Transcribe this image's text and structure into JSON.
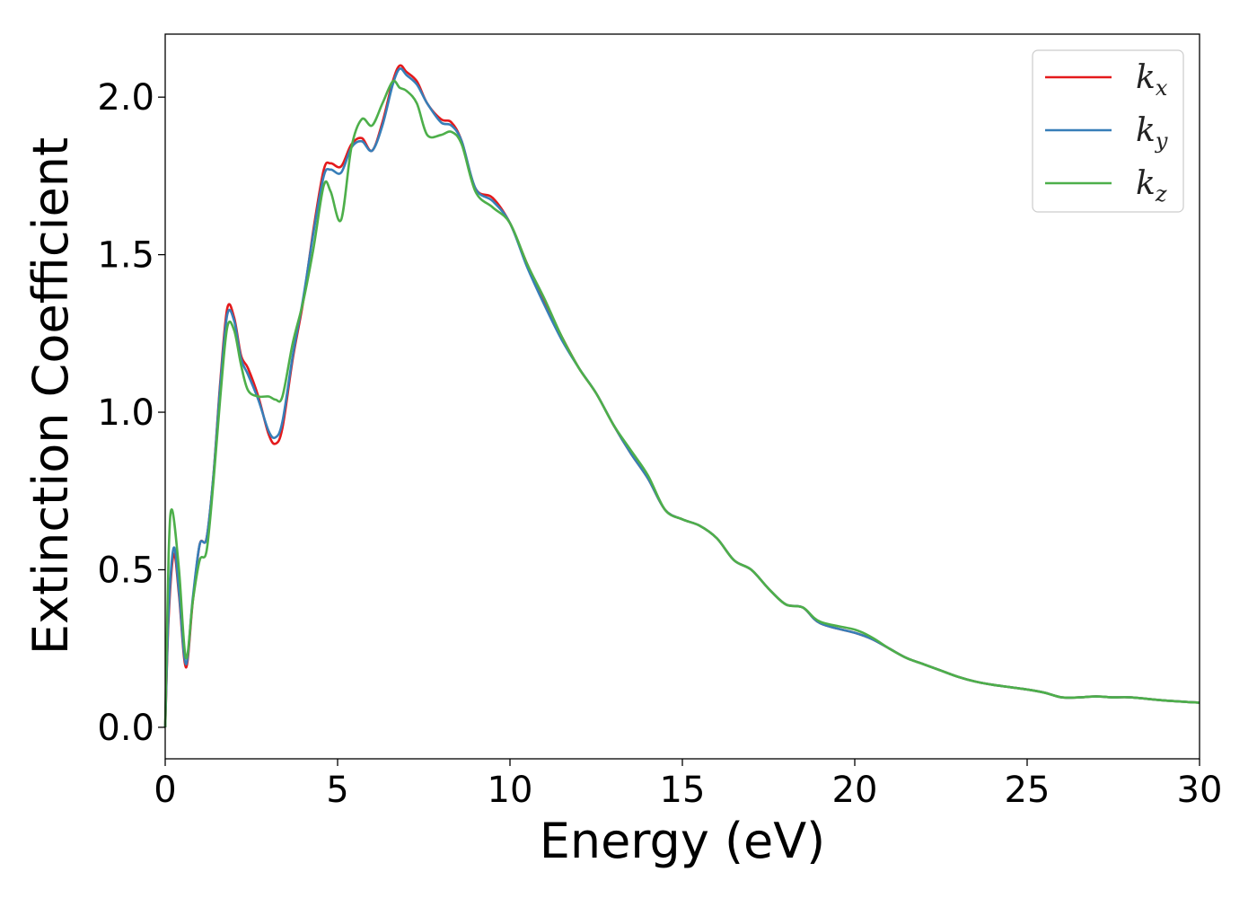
{
  "chart_data": {
    "type": "line",
    "xlabel": "Energy (eV)",
    "ylabel": "Extinction Coefficient",
    "xlim": [
      0,
      30
    ],
    "ylim": [
      -0.1,
      2.2
    ],
    "xticks": [
      0,
      5,
      10,
      15,
      20,
      25,
      30
    ],
    "xtick_labels": [
      "0",
      "5",
      "10",
      "15",
      "20",
      "25",
      "30"
    ],
    "yticks": [
      0.0,
      0.5,
      1.0,
      1.5,
      2.0
    ],
    "ytick_labels": [
      "0.0",
      "0.5",
      "1.0",
      "1.5",
      "2.0"
    ],
    "grid": false,
    "legend_position": "top-right",
    "series": [
      {
        "name": "kx",
        "label_base": "k",
        "label_sub": "x",
        "color": "#e41a1c",
        "x": [
          0,
          0.1,
          0.25,
          0.4,
          0.6,
          0.8,
          1.0,
          1.2,
          1.4,
          1.6,
          1.8,
          2.0,
          2.2,
          2.4,
          2.7,
          3.0,
          3.2,
          3.4,
          3.7,
          4.0,
          4.3,
          4.6,
          4.8,
          5.1,
          5.4,
          5.7,
          6.0,
          6.3,
          6.6,
          6.8,
          7.0,
          7.3,
          7.6,
          8.0,
          8.3,
          8.6,
          9.0,
          9.5,
          10.0,
          10.5,
          11.0,
          11.5,
          12.0,
          12.5,
          13.0,
          13.5,
          14.0,
          14.5,
          15.0,
          15.5,
          16.0,
          16.5,
          17.0,
          17.5,
          18.0,
          18.5,
          19.0,
          20.0,
          20.5,
          21.0,
          21.5,
          22.0,
          22.5,
          23.0,
          23.5,
          24.0,
          25.0,
          25.5,
          26.0,
          26.5,
          27.0,
          27.5,
          28.0,
          29.0,
          30.0
        ],
        "y": [
          0.0,
          0.35,
          0.55,
          0.42,
          0.19,
          0.4,
          0.58,
          0.6,
          0.8,
          1.1,
          1.33,
          1.3,
          1.18,
          1.14,
          1.05,
          0.93,
          0.9,
          0.95,
          1.17,
          1.35,
          1.58,
          1.77,
          1.79,
          1.78,
          1.85,
          1.87,
          1.83,
          1.92,
          2.05,
          2.1,
          2.08,
          2.05,
          1.98,
          1.93,
          1.92,
          1.86,
          1.71,
          1.68,
          1.6,
          1.47,
          1.35,
          1.24,
          1.14,
          1.06,
          0.96,
          0.87,
          0.79,
          0.69,
          0.66,
          0.64,
          0.6,
          0.53,
          0.5,
          0.44,
          0.39,
          0.38,
          0.33,
          0.3,
          0.28,
          0.25,
          0.22,
          0.2,
          0.18,
          0.16,
          0.145,
          0.135,
          0.12,
          0.11,
          0.095,
          0.095,
          0.098,
          0.095,
          0.095,
          0.085,
          0.078
        ]
      },
      {
        "name": "ky",
        "label_base": "k",
        "label_sub": "y",
        "color": "#377eb8",
        "x": [
          0,
          0.1,
          0.25,
          0.4,
          0.6,
          0.8,
          1.0,
          1.2,
          1.4,
          1.6,
          1.8,
          2.0,
          2.2,
          2.4,
          2.7,
          3.0,
          3.2,
          3.4,
          3.7,
          4.0,
          4.3,
          4.6,
          4.8,
          5.1,
          5.4,
          5.7,
          6.0,
          6.3,
          6.6,
          6.8,
          7.0,
          7.3,
          7.6,
          8.0,
          8.3,
          8.6,
          9.0,
          9.5,
          10.0,
          10.5,
          11.0,
          11.5,
          12.0,
          12.5,
          13.0,
          13.5,
          14.0,
          14.5,
          15.0,
          15.5,
          16.0,
          16.5,
          17.0,
          17.5,
          18.0,
          18.5,
          19.0,
          20.0,
          20.5,
          21.0,
          21.5,
          22.0,
          22.5,
          23.0,
          23.5,
          24.0,
          25.0,
          25.5,
          26.0,
          26.5,
          27.0,
          27.5,
          28.0,
          29.0,
          30.0
        ],
        "y": [
          0.0,
          0.37,
          0.57,
          0.43,
          0.2,
          0.41,
          0.58,
          0.6,
          0.8,
          1.09,
          1.31,
          1.29,
          1.17,
          1.12,
          1.04,
          0.94,
          0.92,
          0.97,
          1.18,
          1.36,
          1.57,
          1.75,
          1.77,
          1.76,
          1.84,
          1.86,
          1.83,
          1.91,
          2.04,
          2.09,
          2.07,
          2.04,
          1.98,
          1.92,
          1.91,
          1.86,
          1.71,
          1.67,
          1.6,
          1.46,
          1.34,
          1.23,
          1.14,
          1.06,
          0.96,
          0.87,
          0.79,
          0.69,
          0.66,
          0.64,
          0.6,
          0.53,
          0.5,
          0.44,
          0.39,
          0.38,
          0.33,
          0.3,
          0.28,
          0.25,
          0.22,
          0.2,
          0.18,
          0.16,
          0.145,
          0.135,
          0.12,
          0.11,
          0.095,
          0.095,
          0.098,
          0.095,
          0.095,
          0.085,
          0.078
        ]
      },
      {
        "name": "kz",
        "label_base": "k",
        "label_sub": "z",
        "color": "#4daf4a",
        "x": [
          0,
          0.1,
          0.2,
          0.4,
          0.6,
          0.8,
          1.0,
          1.2,
          1.4,
          1.6,
          1.8,
          2.0,
          2.2,
          2.4,
          2.7,
          3.0,
          3.2,
          3.4,
          3.7,
          4.0,
          4.3,
          4.6,
          4.8,
          5.1,
          5.4,
          5.7,
          6.0,
          6.3,
          6.6,
          6.8,
          7.0,
          7.3,
          7.6,
          8.0,
          8.3,
          8.6,
          9.0,
          9.5,
          10.0,
          10.5,
          11.0,
          11.5,
          12.0,
          12.5,
          13.0,
          13.5,
          14.0,
          14.5,
          15.0,
          15.5,
          16.0,
          16.5,
          17.0,
          17.5,
          18.0,
          18.5,
          19.0,
          20.0,
          20.5,
          21.0,
          21.5,
          22.0,
          22.5,
          23.0,
          23.5,
          24.0,
          25.0,
          25.5,
          26.0,
          26.5,
          27.0,
          27.5,
          28.0,
          29.0,
          30.0
        ],
        "y": [
          0.0,
          0.55,
          0.69,
          0.5,
          0.22,
          0.4,
          0.53,
          0.56,
          0.78,
          1.05,
          1.27,
          1.26,
          1.15,
          1.07,
          1.05,
          1.05,
          1.04,
          1.05,
          1.22,
          1.35,
          1.52,
          1.72,
          1.7,
          1.61,
          1.84,
          1.93,
          1.91,
          1.98,
          2.05,
          2.03,
          2.02,
          1.98,
          1.88,
          1.88,
          1.89,
          1.85,
          1.7,
          1.65,
          1.6,
          1.47,
          1.36,
          1.24,
          1.14,
          1.06,
          0.96,
          0.88,
          0.8,
          0.69,
          0.66,
          0.64,
          0.6,
          0.53,
          0.5,
          0.44,
          0.39,
          0.38,
          0.335,
          0.31,
          0.285,
          0.25,
          0.22,
          0.2,
          0.18,
          0.16,
          0.145,
          0.135,
          0.12,
          0.11,
          0.095,
          0.095,
          0.098,
          0.095,
          0.095,
          0.085,
          0.078
        ]
      }
    ]
  }
}
